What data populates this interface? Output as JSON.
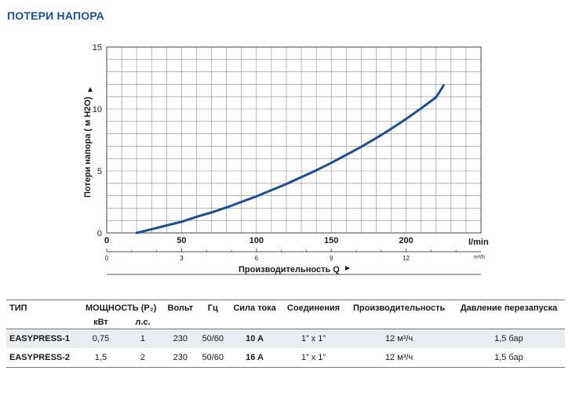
{
  "page": {
    "title": "ПОТЕРИ НАПОРА"
  },
  "chart_data": {
    "type": "line",
    "ylabel": "Потери напора ( м H2O)",
    "xlabel": "Производительность Q",
    "ylim": [
      0,
      15
    ],
    "xlim": [
      0,
      250
    ],
    "grid": true,
    "y_ticks": [
      0,
      5,
      10,
      15
    ],
    "x_ticks": [
      0,
      50,
      100,
      150,
      200
    ],
    "x_unit_label": "l/min",
    "secondary_x_ticks": [
      0,
      3,
      6,
      9,
      12
    ],
    "secondary_x_unit_label": "m³/h",
    "series": [
      {
        "x": [
          20,
          30,
          40,
          50,
          60,
          70,
          80,
          90,
          100,
          110,
          120,
          130,
          140,
          150,
          160,
          170,
          180,
          190,
          200,
          210,
          220,
          225
        ],
        "y": [
          0.0,
          0.3,
          0.6,
          0.9,
          1.3,
          1.65,
          2.05,
          2.5,
          2.95,
          3.45,
          3.95,
          4.5,
          5.05,
          5.65,
          6.3,
          6.95,
          7.65,
          8.4,
          9.2,
          10.05,
          10.95,
          11.9
        ],
        "color": "#1d4f8c"
      }
    ]
  },
  "table": {
    "headers": {
      "type": "ТИП",
      "power": "МОЩНОСТЬ (P₂)",
      "power_kw": "кВт",
      "power_hp": "л.с.",
      "volt": "Вольт",
      "hz": "Гц",
      "current": "Сила тока",
      "connections": "Соединения",
      "capacity": "Производительность",
      "restart_pressure": "Давление перезапуска"
    },
    "rows": [
      {
        "model": "EASYPRESS-1",
        "kw": "0,75",
        "hp": "1",
        "volt": "230",
        "hz": "50/60",
        "current": "10 A",
        "connections": "1” x 1”",
        "capacity": "12 м³/ч",
        "pressure": "1,5 бар"
      },
      {
        "model": "EASYPRESS-2",
        "kw": "1,5",
        "hp": "2",
        "volt": "230",
        "hz": "50/60",
        "current": "16 A",
        "connections": "1” x 1”",
        "capacity": "12 м³/ч",
        "pressure": "1,5 бар"
      }
    ]
  }
}
